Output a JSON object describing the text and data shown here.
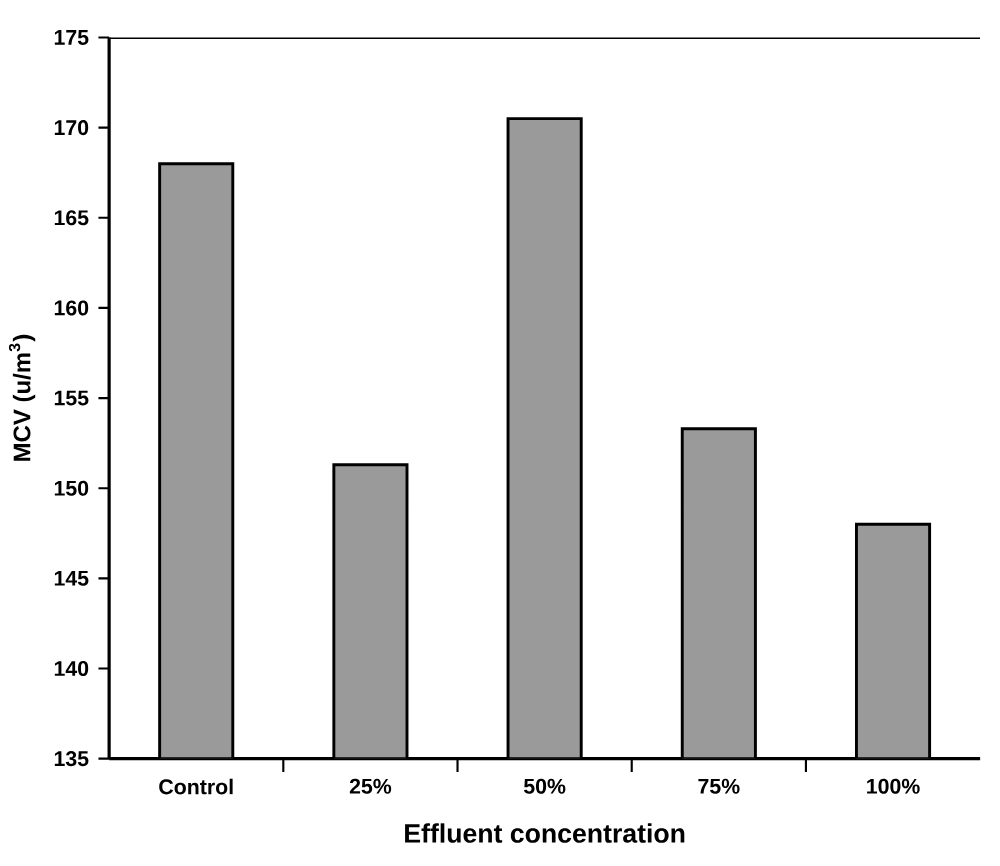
{
  "chart_data": {
    "type": "bar",
    "xlabel": "Effluent concentration",
    "ylabel": "MCV (u/m$^{3}$)",
    "categories": [
      "Control",
      "25%",
      "50%",
      "75%",
      "100%"
    ],
    "values": [
      168.0,
      151.3,
      170.5,
      153.3,
      148.0
    ],
    "color": "#9a9a9a",
    "ylim": [
      135,
      175
    ],
    "yticks": [
      135,
      140,
      145,
      150,
      155,
      160,
      165,
      170,
      175
    ]
  }
}
